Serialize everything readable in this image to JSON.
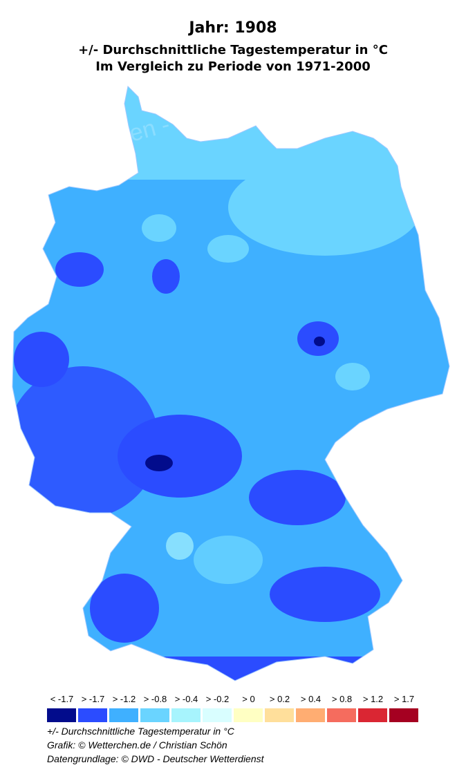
{
  "title": {
    "year_line": "Jahr: 1908",
    "subtitle": "+/- Durchschnittliche Tagestemperatur in °C",
    "period": "Im Vergleich zu Periode von 1971-2000"
  },
  "map": {
    "region": "Deutschland",
    "watermark": "Wetterchen - Christian Schön",
    "dominant_colors": [
      "#2b4cff",
      "#3fb0ff",
      "#6ad4ff"
    ]
  },
  "legend": {
    "items": [
      {
        "label": "< -1.7",
        "color": "#020c8c"
      },
      {
        "label": "> -1.7",
        "color": "#2b4cff"
      },
      {
        "label": "> -1.2",
        "color": "#3fb0ff"
      },
      {
        "label": "> -0.8",
        "color": "#6ad4ff"
      },
      {
        "label": "> -0.4",
        "color": "#a7f4fd"
      },
      {
        "label": "> -0.2",
        "color": "#d9feff"
      },
      {
        "label": "> 0",
        "color": "#ffffc3"
      },
      {
        "label": "> 0.2",
        "color": "#ffdf9b"
      },
      {
        "label": "> 0.4",
        "color": "#ffad72"
      },
      {
        "label": "> 0.8",
        "color": "#f56c5e"
      },
      {
        "label": "> 1.2",
        "color": "#da2633"
      },
      {
        "label": "> 1.7",
        "color": "#a50021"
      }
    ]
  },
  "footer": {
    "unit_line": "+/- Durchschnittliche Tagestemperatur in °C",
    "credit": "Grafik: © Wetterchen.de / Christian Schön",
    "source": "Datengrundlage: © DWD - Deutscher Wetterdienst"
  }
}
